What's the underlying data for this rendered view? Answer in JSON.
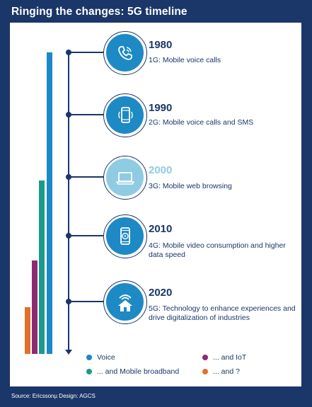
{
  "title": "Ringing the changes: 5G timeline",
  "source": "Source: Ericssonµ Design: AGCS",
  "colors": {
    "navy": "#1b3668",
    "blue": "#1d89c5",
    "teal": "#1b9a8c",
    "purple": "#8e2a73",
    "orange": "#e2702a",
    "pale_blue": "#8fcbe3"
  },
  "milestones": [
    {
      "year": "1980",
      "desc": "1G: Mobile voice calls",
      "icon": "phone-icon"
    },
    {
      "year": "1990",
      "desc": "2G: Mobile voice calls and SMS",
      "icon": "mobile-phone-icon"
    },
    {
      "year": "2000",
      "desc": "3G: Mobile web browsing",
      "icon": "laptop-icon"
    },
    {
      "year": "2010",
      "desc": "4G: Mobile video consumption and higher data speed",
      "icon": "smartphone-video-icon"
    },
    {
      "year": "2020",
      "desc": "5G: Technology to enhance experiences and drive digitalization of industries",
      "icon": "smart-home-icon"
    }
  ],
  "legend": [
    {
      "label": "Voice",
      "color": "#1d89c5"
    },
    {
      "label": "... and IoT",
      "color": "#8e2a73"
    },
    {
      "label": "... and Mobile broadband",
      "color": "#1b9a8c"
    },
    {
      "label": "... and ?",
      "color": "#e2702a"
    }
  ]
}
